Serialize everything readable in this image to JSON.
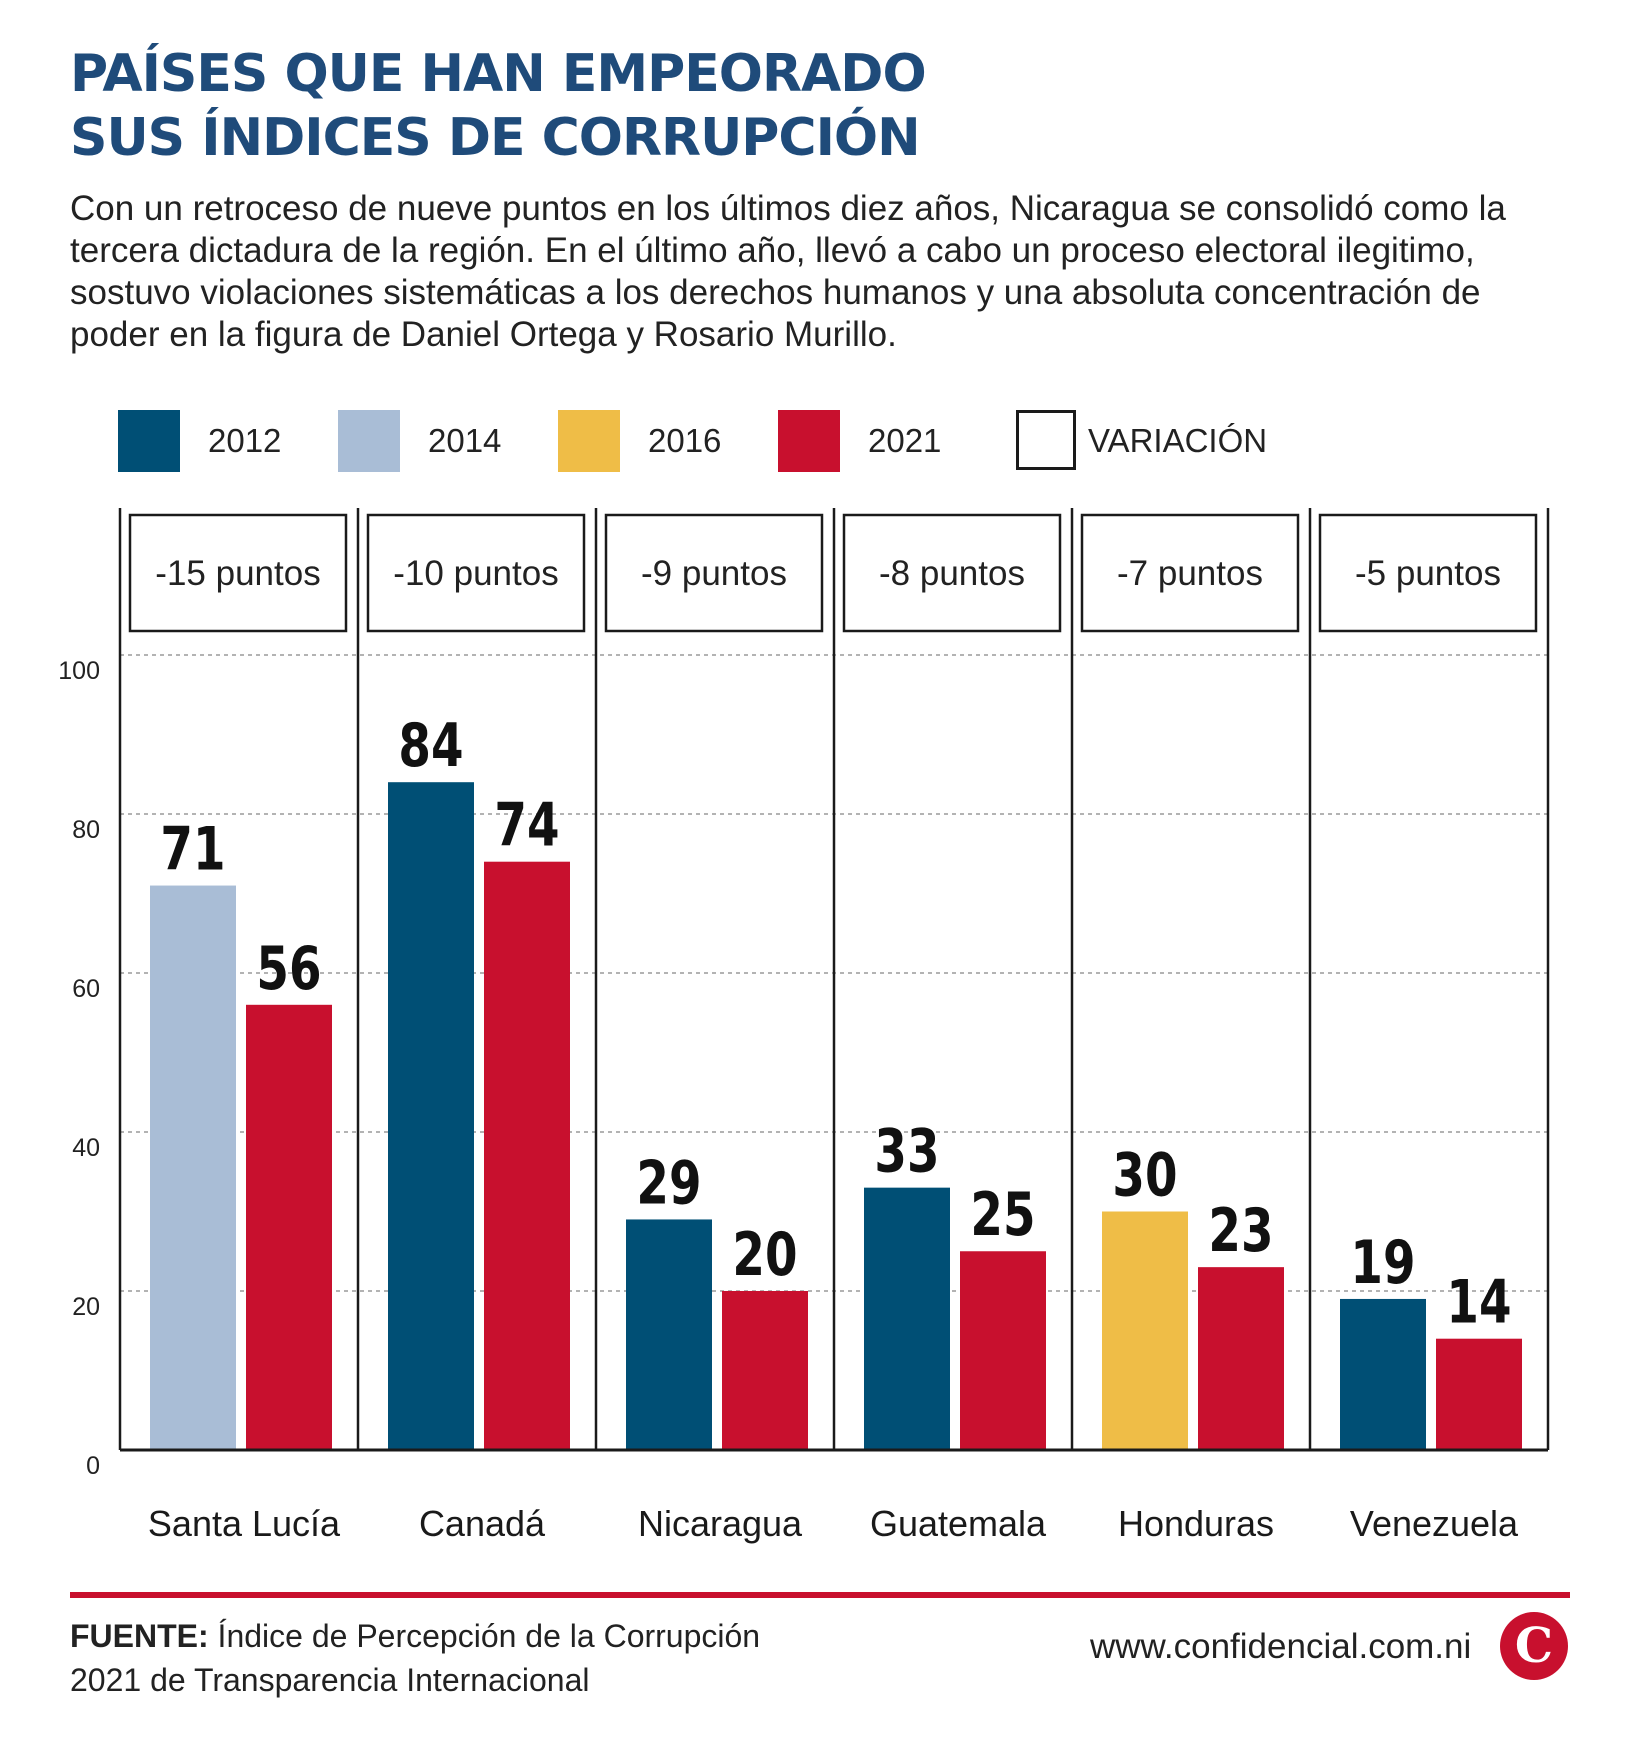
{
  "title_line1": "PAÍSES QUE HAN EMPEORADO",
  "title_line2": "SUS ÍNDICES DE CORRUPCIÓN",
  "subtitle": "Con un retroceso de nueve puntos en los últimos diez años, Nicaragua se consolidó como la tercera dictadura de la región. En el último año, llevó a cabo un proceso electoral ilegitimo, sostuvo violaciones sistemáticas a los derechos humanos y una absoluta concentración de poder en la figura de Daniel Ortega y Rosario Murillo.",
  "legend": [
    {
      "label": "2012",
      "color": "#004f75",
      "outlined": false
    },
    {
      "label": "2014",
      "color": "#a9bdd6",
      "outlined": false
    },
    {
      "label": "2016",
      "color": "#efbd47",
      "outlined": false
    },
    {
      "label": "2021",
      "color": "#c8102e",
      "outlined": false
    },
    {
      "label": "VARIACIÓN",
      "color": "#ffffff",
      "outlined": true
    }
  ],
  "chart_data": {
    "type": "bar",
    "categories": [
      "Santa Lucía",
      "Canadá",
      "Nicaragua",
      "Guatemala",
      "Honduras",
      "Venezuela"
    ],
    "variations": [
      "-15 puntos",
      "-10 puntos",
      "-9 puntos",
      "-8 puntos",
      "-7  puntos",
      "-5 puntos"
    ],
    "bars": [
      [
        {
          "year": "2014",
          "value": 71
        },
        {
          "year": "2021",
          "value": 56
        }
      ],
      [
        {
          "year": "2012",
          "value": 84
        },
        {
          "year": "2021",
          "value": 74
        }
      ],
      [
        {
          "year": "2012",
          "value": 29
        },
        {
          "year": "2021",
          "value": 20
        }
      ],
      [
        {
          "year": "2012",
          "value": 33
        },
        {
          "year": "2021",
          "value": 25
        }
      ],
      [
        {
          "year": "2016",
          "value": 30
        },
        {
          "year": "2021",
          "value": 23
        }
      ],
      [
        {
          "year": "2012",
          "value": 19
        },
        {
          "year": "2021",
          "value": 14
        }
      ]
    ],
    "colors": {
      "2012": "#004f75",
      "2014": "#a9bdd6",
      "2016": "#efbd47",
      "2021": "#c8102e"
    },
    "yticks": [
      0,
      20,
      40,
      60,
      80,
      100
    ],
    "ylim": [
      0,
      100
    ],
    "grid": true
  },
  "source": {
    "label": "FUENTE:",
    "line1": "Índice de Percepción de la Corrupción",
    "line2": "2021 de Transparencia Internacional"
  },
  "website": "www.confidencial.com.ni",
  "logo_letter": "C"
}
